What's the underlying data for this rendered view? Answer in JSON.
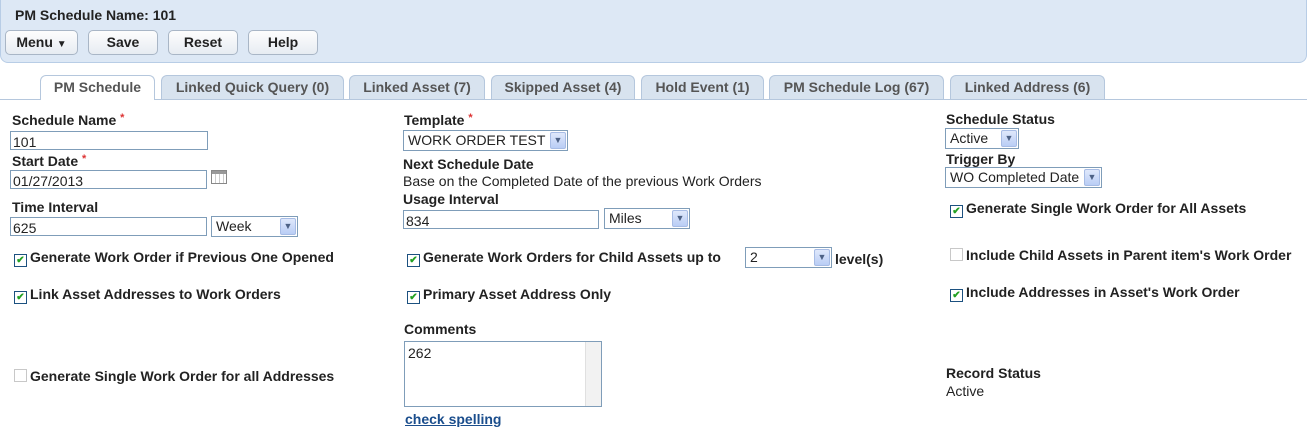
{
  "header": {
    "title": "PM Schedule Name: 101",
    "menu_label": "Menu",
    "menu_icon": "menu-dropdown-icon",
    "save_label": "Save",
    "reset_label": "Reset",
    "help_label": "Help"
  },
  "tabs": [
    {
      "label": "PM Schedule",
      "active": true
    },
    {
      "label": "Linked Quick Query (0)"
    },
    {
      "label": "Linked Asset (7)"
    },
    {
      "label": "Skipped Asset (4)"
    },
    {
      "label": "Hold Event (1)"
    },
    {
      "label": "PM Schedule Log (67)"
    },
    {
      "label": "Linked Address (6)"
    }
  ],
  "form": {
    "schedule_name": {
      "label": "Schedule Name",
      "required": "*",
      "value": "101"
    },
    "start_date": {
      "label": "Start Date",
      "required": "*",
      "value": "01/27/2013",
      "icon": "calendar-icon"
    },
    "time_interval": {
      "label": "Time Interval",
      "value": "625",
      "unit": "Week"
    },
    "template": {
      "label": "Template",
      "required": "*",
      "value": "WORK ORDER TEST"
    },
    "next_schedule_date": {
      "label": "Next Schedule Date",
      "value": "Base on the Completed Date of the previous Work Orders"
    },
    "usage_interval": {
      "label": "Usage Interval",
      "value": "834",
      "unit": "Miles"
    },
    "schedule_status": {
      "label": "Schedule Status",
      "value": "Active"
    },
    "trigger_by": {
      "label": "Trigger By",
      "value": "WO Completed Date"
    },
    "checkboxes": {
      "gen_if_prev_open": {
        "label": "Generate Work Order if Previous One Opened",
        "checked": true
      },
      "link_asset_addresses": {
        "label": "Link Asset Addresses to Work Orders",
        "checked": true
      },
      "single_wo_addresses": {
        "label": "Generate Single Work Order for all Addresses",
        "checked": false
      },
      "child_assets": {
        "label": "Generate Work Orders for Child Assets up to",
        "checked": true,
        "levels": "2",
        "suffix": "level(s)"
      },
      "primary_address_only": {
        "label": "Primary Asset Address Only",
        "checked": true
      },
      "single_wo_all_assets": {
        "label": "Generate Single Work Order for All Assets",
        "checked": true
      },
      "include_child_assets": {
        "label": "Include Child Assets in Parent item's Work Order",
        "checked": false
      },
      "include_addresses": {
        "label": "Include Addresses in Asset's Work Order",
        "checked": true
      }
    },
    "comments": {
      "label": "Comments",
      "value": "262",
      "spell_link": "check spelling"
    },
    "record_status": {
      "label": "Record Status",
      "value": "Active"
    }
  },
  "colors": {
    "header_bg": "#dde8f5",
    "tab_bg": "#d8e3ef",
    "link": "#1a4d8c",
    "required": "#dd3333",
    "check": "#22a022"
  }
}
